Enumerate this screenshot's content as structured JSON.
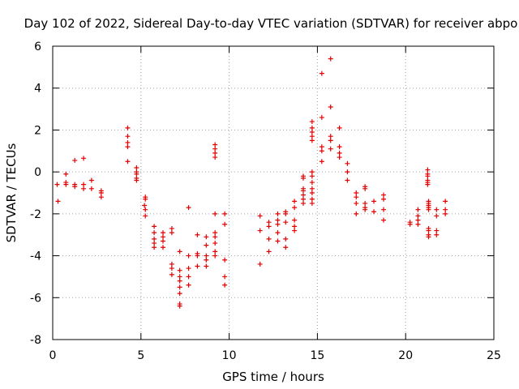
{
  "chart_data": {
    "type": "scatter",
    "title": "Day 102 of 2022, Sidereal Day-to-day VTEC variation (SDTVAR) for receiver abpo",
    "xlabel": "GPS time / hours",
    "ylabel": "SDTVAR / TECUs",
    "xlim": [
      0,
      25
    ],
    "ylim": [
      -8,
      6
    ],
    "x_ticks": [
      0,
      5,
      10,
      15,
      20,
      25
    ],
    "x_tick_labels": [
      "0",
      "5",
      "10",
      "15",
      "20",
      "25"
    ],
    "y_ticks": [
      -8,
      -6,
      -4,
      -2,
      0,
      2,
      4,
      6
    ],
    "y_tick_labels": [
      "-8",
      "-6",
      "-4",
      "-2",
      "0",
      "2",
      "4",
      "6"
    ],
    "grid": true,
    "marker": "+",
    "color": "#e00000",
    "series": [
      {
        "name": "SDTVAR",
        "points": [
          [
            0.25,
            -0.6
          ],
          [
            0.3,
            -1.4
          ],
          [
            0.75,
            -0.1
          ],
          [
            0.75,
            -0.5
          ],
          [
            0.75,
            -0.6
          ],
          [
            1.25,
            0.55
          ],
          [
            1.25,
            -0.6
          ],
          [
            1.25,
            -0.7
          ],
          [
            1.75,
            0.65
          ],
          [
            1.75,
            -0.6
          ],
          [
            1.75,
            -0.8
          ],
          [
            2.2,
            -0.4
          ],
          [
            2.2,
            -0.8
          ],
          [
            2.75,
            -0.9
          ],
          [
            2.75,
            -1.0
          ],
          [
            2.75,
            -1.2
          ],
          [
            4.25,
            2.1
          ],
          [
            4.25,
            1.7
          ],
          [
            4.25,
            1.4
          ],
          [
            4.25,
            1.2
          ],
          [
            4.25,
            0.5
          ],
          [
            4.75,
            0.2
          ],
          [
            4.75,
            0.0
          ],
          [
            4.75,
            -0.1
          ],
          [
            4.75,
            -0.3
          ],
          [
            4.75,
            -0.4
          ],
          [
            5.25,
            -1.2
          ],
          [
            5.25,
            -1.3
          ],
          [
            5.2,
            -1.6
          ],
          [
            5.25,
            -1.8
          ],
          [
            5.25,
            -2.1
          ],
          [
            5.75,
            -2.6
          ],
          [
            5.75,
            -2.9
          ],
          [
            5.75,
            -3.2
          ],
          [
            5.75,
            -3.4
          ],
          [
            5.75,
            -3.6
          ],
          [
            6.25,
            -2.9
          ],
          [
            6.25,
            -3.1
          ],
          [
            6.25,
            -3.3
          ],
          [
            6.25,
            -3.6
          ],
          [
            6.75,
            -2.7
          ],
          [
            6.75,
            -2.9
          ],
          [
            6.75,
            -4.4
          ],
          [
            6.75,
            -4.6
          ],
          [
            6.75,
            -4.9
          ],
          [
            7.2,
            -3.8
          ],
          [
            7.2,
            -4.7
          ],
          [
            7.2,
            -5.0
          ],
          [
            7.2,
            -5.2
          ],
          [
            7.2,
            -5.5
          ],
          [
            7.2,
            -5.8
          ],
          [
            7.2,
            -6.3
          ],
          [
            7.2,
            -6.4
          ],
          [
            7.7,
            -1.7
          ],
          [
            7.7,
            -4.0
          ],
          [
            7.7,
            -4.6
          ],
          [
            7.7,
            -5.0
          ],
          [
            7.7,
            -5.4
          ],
          [
            8.2,
            -3.0
          ],
          [
            8.2,
            -3.9
          ],
          [
            8.2,
            -4.0
          ],
          [
            8.2,
            -4.5
          ],
          [
            8.7,
            -3.1
          ],
          [
            8.7,
            -3.5
          ],
          [
            8.7,
            -4.0
          ],
          [
            8.7,
            -4.2
          ],
          [
            8.7,
            -4.5
          ],
          [
            9.2,
            1.3
          ],
          [
            9.2,
            1.1
          ],
          [
            9.2,
            0.9
          ],
          [
            9.2,
            0.7
          ],
          [
            9.2,
            -2.0
          ],
          [
            9.2,
            -2.9
          ],
          [
            9.2,
            -3.1
          ],
          [
            9.2,
            -3.4
          ],
          [
            9.2,
            -3.8
          ],
          [
            9.2,
            -4.0
          ],
          [
            9.75,
            -2.0
          ],
          [
            9.75,
            -2.5
          ],
          [
            9.75,
            -4.2
          ],
          [
            9.75,
            -5.0
          ],
          [
            9.75,
            -5.4
          ],
          [
            11.75,
            -2.1
          ],
          [
            11.75,
            -2.8
          ],
          [
            11.75,
            -4.4
          ],
          [
            12.25,
            -2.4
          ],
          [
            12.25,
            -2.6
          ],
          [
            12.25,
            -3.2
          ],
          [
            12.25,
            -3.8
          ],
          [
            12.75,
            -2.0
          ],
          [
            12.75,
            -2.3
          ],
          [
            12.75,
            -2.5
          ],
          [
            12.75,
            -2.9
          ],
          [
            12.75,
            -3.3
          ],
          [
            13.2,
            -1.9
          ],
          [
            13.2,
            -2.0
          ],
          [
            13.2,
            -2.4
          ],
          [
            13.2,
            -3.2
          ],
          [
            13.2,
            -3.6
          ],
          [
            13.7,
            -1.4
          ],
          [
            13.7,
            -1.7
          ],
          [
            13.7,
            -2.3
          ],
          [
            13.7,
            -2.6
          ],
          [
            13.7,
            -2.8
          ],
          [
            14.2,
            -0.2
          ],
          [
            14.2,
            -0.3
          ],
          [
            14.2,
            -0.8
          ],
          [
            14.2,
            -0.9
          ],
          [
            14.2,
            -1.1
          ],
          [
            14.2,
            -1.3
          ],
          [
            14.2,
            -1.5
          ],
          [
            14.7,
            2.4
          ],
          [
            14.7,
            2.1
          ],
          [
            14.7,
            1.9
          ],
          [
            14.7,
            1.7
          ],
          [
            14.7,
            1.5
          ],
          [
            14.7,
            0.0
          ],
          [
            14.7,
            -0.2
          ],
          [
            14.7,
            -0.5
          ],
          [
            14.7,
            -0.8
          ],
          [
            14.7,
            -1.0
          ],
          [
            14.7,
            -1.3
          ],
          [
            14.7,
            -1.5
          ],
          [
            15.25,
            4.7
          ],
          [
            15.25,
            2.6
          ],
          [
            15.25,
            1.2
          ],
          [
            15.25,
            1.0
          ],
          [
            15.25,
            0.5
          ],
          [
            15.75,
            5.4
          ],
          [
            15.75,
            3.1
          ],
          [
            15.75,
            1.7
          ],
          [
            15.75,
            1.5
          ],
          [
            15.75,
            1.1
          ],
          [
            16.25,
            2.1
          ],
          [
            16.25,
            1.2
          ],
          [
            16.25,
            0.9
          ],
          [
            16.25,
            0.7
          ],
          [
            16.7,
            0.4
          ],
          [
            16.7,
            0.0
          ],
          [
            16.7,
            -0.4
          ],
          [
            17.2,
            -1.0
          ],
          [
            17.2,
            -1.2
          ],
          [
            17.2,
            -1.5
          ],
          [
            17.2,
            -2.0
          ],
          [
            17.7,
            -0.7
          ],
          [
            17.7,
            -0.8
          ],
          [
            17.7,
            -1.5
          ],
          [
            17.7,
            -1.7
          ],
          [
            17.7,
            -1.8
          ],
          [
            18.2,
            -1.4
          ],
          [
            18.2,
            -1.9
          ],
          [
            18.75,
            -1.1
          ],
          [
            18.75,
            -1.3
          ],
          [
            18.75,
            -1.8
          ],
          [
            18.75,
            -2.3
          ],
          [
            20.25,
            -2.4
          ],
          [
            20.25,
            -2.5
          ],
          [
            20.7,
            -1.8
          ],
          [
            20.7,
            -2.1
          ],
          [
            20.7,
            -2.3
          ],
          [
            20.7,
            -2.5
          ],
          [
            21.25,
            0.1
          ],
          [
            21.25,
            -0.1
          ],
          [
            21.25,
            -0.2
          ],
          [
            21.25,
            -0.4
          ],
          [
            21.25,
            -0.5
          ],
          [
            21.25,
            -0.6
          ],
          [
            21.3,
            -1.4
          ],
          [
            21.3,
            -1.5
          ],
          [
            21.3,
            -1.6
          ],
          [
            21.3,
            -1.7
          ],
          [
            21.3,
            -1.8
          ],
          [
            21.3,
            -2.7
          ],
          [
            21.3,
            -2.8
          ],
          [
            21.3,
            -3.0
          ],
          [
            21.3,
            -3.1
          ],
          [
            21.75,
            -1.8
          ],
          [
            21.75,
            -2.1
          ],
          [
            21.75,
            -2.8
          ],
          [
            21.75,
            -3.0
          ],
          [
            22.25,
            -1.4
          ],
          [
            22.25,
            -1.8
          ],
          [
            22.25,
            -2.0
          ]
        ]
      }
    ]
  }
}
